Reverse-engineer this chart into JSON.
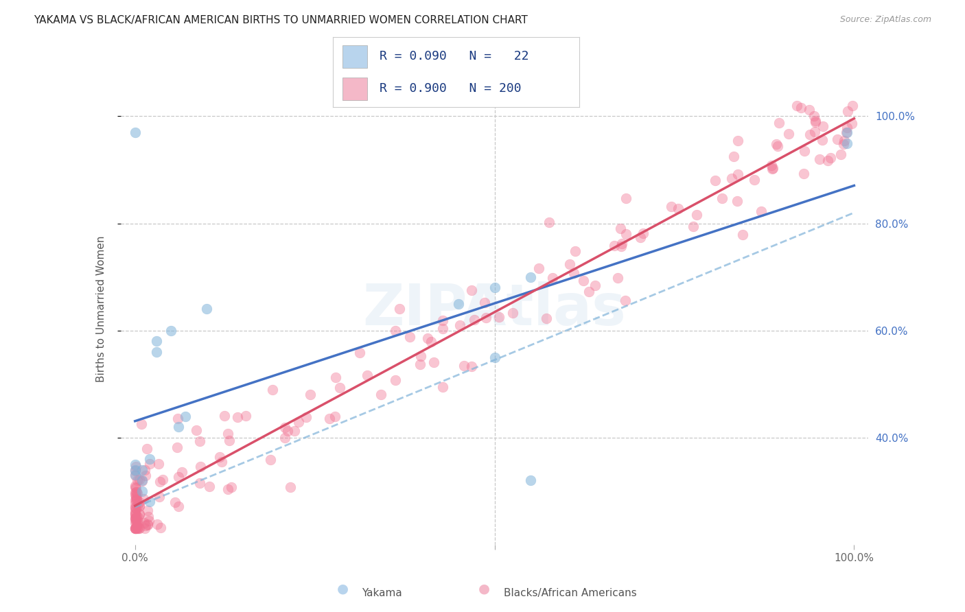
{
  "title": "YAKAMA VS BLACK/AFRICAN AMERICAN BIRTHS TO UNMARRIED WOMEN CORRELATION CHART",
  "source": "Source: ZipAtlas.com",
  "ylabel": "Births to Unmarried Women",
  "series1_label": "Yakama",
  "series2_label": "Blacks/African Americans",
  "legend_line1": "R = 0.090   N =   22",
  "legend_line2": "R = 0.900   N = 200",
  "series1_color": "#80b3d9",
  "series2_color": "#f07090",
  "legend_color1": "#b8d4ed",
  "legend_color2": "#f4b8c8",
  "regression1_color": "#4472c4",
  "regression2_color": "#d9506a",
  "dashed_color": "#80b3d9",
  "grid_color": "#c8c8c8",
  "title_color": "#222222",
  "axis_tick_color": "#4472c4",
  "bg_color": "#ffffff",
  "watermark": "ZIPAtlas",
  "xlim_min": -0.02,
  "xlim_max": 1.02,
  "ylim_min": 0.2,
  "ylim_max": 1.08,
  "ytick_positions": [
    0.4,
    0.6,
    0.8,
    1.0
  ],
  "ytick_labels": [
    "40.0%",
    "60.0%",
    "80.0%",
    "100.0%"
  ],
  "figwidth": 14.06,
  "figheight": 8.92,
  "dpi": 100,
  "yakama_x": [
    0.0,
    0.0,
    0.0,
    0.0,
    0.01,
    0.01,
    0.01,
    0.02,
    0.02,
    0.03,
    0.03,
    0.05,
    0.06,
    0.07,
    0.1,
    0.45,
    0.5,
    0.5,
    0.55,
    0.55,
    0.99,
    0.99
  ],
  "yakama_y": [
    0.33,
    0.34,
    0.35,
    0.97,
    0.3,
    0.32,
    0.34,
    0.28,
    0.36,
    0.56,
    0.58,
    0.6,
    0.42,
    0.44,
    0.64,
    0.65,
    0.68,
    0.55,
    0.32,
    0.7,
    0.95,
    0.97
  ]
}
